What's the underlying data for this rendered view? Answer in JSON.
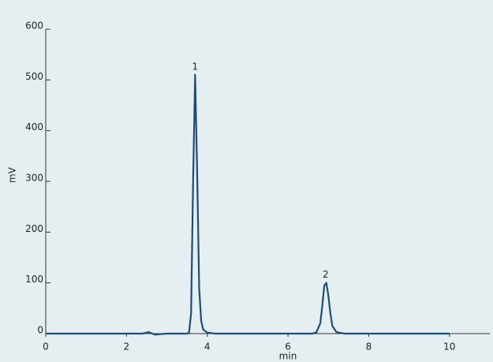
{
  "chart_data": {
    "type": "line",
    "x": [
      0,
      1,
      2,
      2.4,
      2.55,
      2.7,
      3.0,
      3.5,
      3.55,
      3.6,
      3.65,
      3.7,
      3.75,
      3.8,
      3.85,
      3.9,
      4.0,
      4.2,
      5,
      6,
      6.6,
      6.7,
      6.8,
      6.85,
      6.9,
      6.95,
      7.0,
      7.05,
      7.1,
      7.2,
      7.4,
      8,
      10
    ],
    "values": [
      0,
      0,
      0,
      0,
      3,
      -2,
      0,
      0,
      2,
      40,
      300,
      510,
      320,
      90,
      25,
      8,
      2,
      0,
      0,
      0,
      0,
      2,
      20,
      55,
      95,
      100,
      75,
      40,
      15,
      3,
      0,
      0,
      0
    ],
    "color": "#1b4f7a",
    "xlim": [
      0,
      11
    ],
    "xticks": [
      0,
      2,
      4,
      6,
      8,
      10
    ],
    "ylim": [
      0,
      600
    ],
    "yticks": [
      0,
      100,
      200,
      300,
      400,
      500,
      600
    ],
    "xlabel": "min",
    "ylabel": "mV",
    "annotations": [
      {
        "text": "1",
        "x": 3.7,
        "y": 510
      },
      {
        "text": "2",
        "x": 6.93,
        "y": 100
      }
    ]
  }
}
